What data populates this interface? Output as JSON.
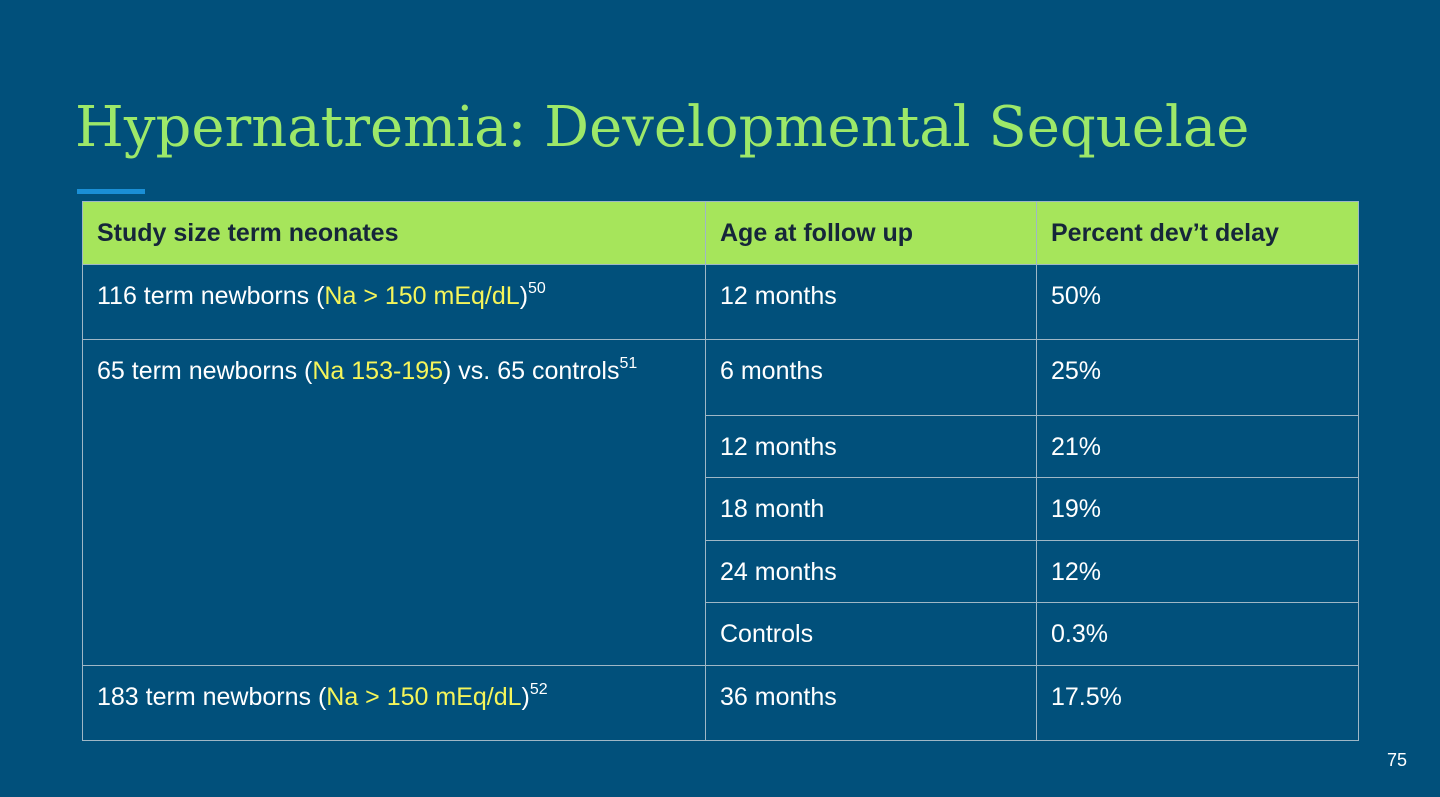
{
  "slide": {
    "title": "Hypernatremia: Developmental Sequelae",
    "page_number": "75"
  },
  "colors": {
    "background": "#01507b",
    "title": "#9de869",
    "header_fill": "#a6e55b",
    "highlight": "#f5f55a",
    "accent_bar": "#1a8fd6"
  },
  "table": {
    "headers": [
      "Study size term neonates",
      "Age at follow up",
      "Percent dev’t delay"
    ],
    "studies": [
      {
        "pre": "116 term newborns (",
        "highlight": "Na > 150 mEq/dL",
        "post": ")",
        "ref": "50"
      },
      {
        "pre": "65 term newborns (",
        "highlight": "Na 153-195",
        "post": ") vs. 65 controls",
        "ref": "51"
      },
      {
        "pre": "183 term newborns (",
        "highlight": "Na > 150 mEq/dL",
        "post": ")",
        "ref": "52"
      }
    ],
    "rows": [
      {
        "age": "12 months",
        "percent": "50%"
      },
      {
        "age": "6 months",
        "percent": "25%"
      },
      {
        "age": "12 months",
        "percent": "21%"
      },
      {
        "age": "18 month",
        "percent": "19%"
      },
      {
        "age": "24 months",
        "percent": "12%"
      },
      {
        "age": "Controls",
        "percent": "0.3%"
      },
      {
        "age": "36 months",
        "percent": "17.5%"
      }
    ]
  }
}
